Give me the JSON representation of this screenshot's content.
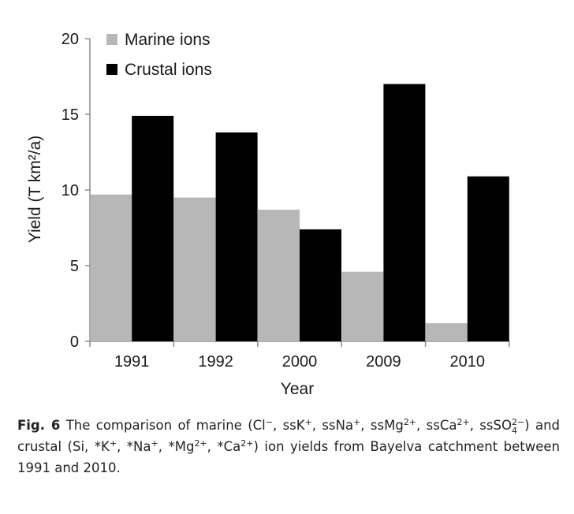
{
  "chart_data": {
    "type": "bar",
    "categories": [
      "1991",
      "1992",
      "2000",
      "2009",
      "2010"
    ],
    "series": [
      {
        "name": "Marine ions",
        "color": "#b7b7b7",
        "values": [
          9.7,
          9.5,
          8.7,
          4.6,
          1.2
        ]
      },
      {
        "name": "Crustal ions",
        "color": "#000000",
        "values": [
          14.9,
          13.8,
          7.4,
          17.0,
          10.9
        ]
      }
    ],
    "title": "",
    "xlabel": "Year",
    "ylabel": "Yield (T km²/a)",
    "ylim": [
      0,
      20
    ],
    "yticks": [
      "0",
      "5",
      "10",
      "15",
      "20"
    ],
    "grid": false,
    "legend": "top-left"
  },
  "caption": {
    "label": "Fig. 6",
    "text": "The comparison of marine (Cl−, ssK+, ssNa+, ssMg2+, ssCa2+, ssSO42−) and crustal (Si, *K+, *Na+, *Mg2+, *Ca2+) ion yields from Bayelva catchment between 1991 and 2010.",
    "parts": {
      "p1": "The comparison of marine (Cl",
      "s1": "−",
      "p2": ", ssK",
      "s2": "+",
      "p3": ", ssNa",
      "s3": "+",
      "p4": ", ssMg",
      "s4": "2+",
      "p5": ", ssCa",
      "s5": "2+",
      "p6": ", ssSO",
      "sub6": "4",
      "sup6": "2−",
      "p7": ") and crustal (Si, *K",
      "s7": "+",
      "p8": ", *Na",
      "s8": "+",
      "p9": ", *Mg",
      "s9": "2+",
      "p10": ", *Ca",
      "s10": "2+",
      "p11": ") ion yields from Bayelva catchment between 1991 and 2010."
    }
  }
}
